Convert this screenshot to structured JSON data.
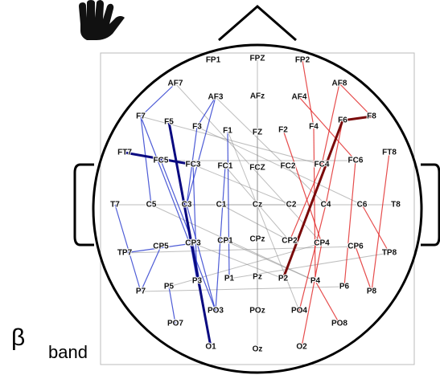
{
  "electrodes": [
    "FP1",
    "FPZ",
    "FP2",
    "AF7",
    "AF3",
    "AFz",
    "AF4",
    "AF8",
    "F7",
    "F5",
    "F3",
    "F1",
    "FZ",
    "F2",
    "F4",
    "F6",
    "F8",
    "FT7",
    "FC5",
    "FC3",
    "FC1",
    "FCZ",
    "FC2",
    "FC4",
    "FC6",
    "FT8",
    "T7",
    "C5",
    "C3",
    "C1",
    "Cz",
    "C2",
    "C4",
    "C6",
    "T8",
    "TP7",
    "CP5",
    "CP3",
    "CP1",
    "CPz",
    "CP2",
    "CP4",
    "CP6",
    "TP8",
    "P7",
    "P5",
    "P3",
    "P1",
    "Pz",
    "P2",
    "P4",
    "P6",
    "P8",
    "PO7",
    "PO3",
    "POz",
    "PO4",
    "PO8",
    "O1",
    "Oz",
    "O2"
  ],
  "annotation": {
    "symbol": "β",
    "label": "band"
  }
}
